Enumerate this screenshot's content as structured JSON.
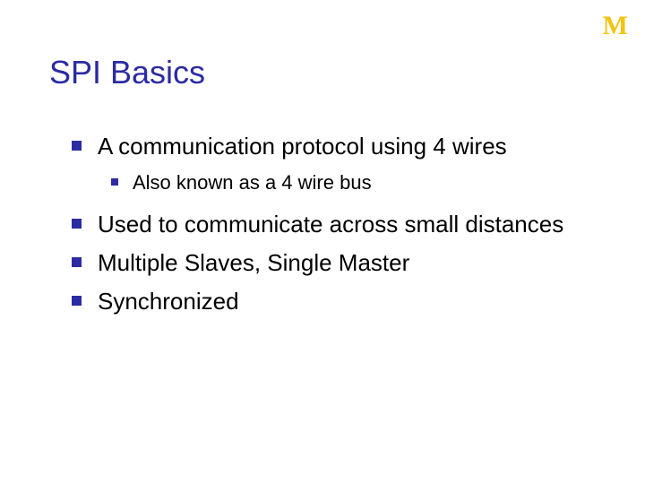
{
  "logo": {
    "text": "M",
    "color": "#f2c40f"
  },
  "title": {
    "text": "SPI Basics",
    "color": "#2b2ba3"
  },
  "bullet_color": "#2b2ba3",
  "text_color": "#000000",
  "body_fontsize_l1": 26,
  "body_fontsize_l2": 22,
  "items": [
    {
      "text": "A communication protocol using 4 wires",
      "children": [
        {
          "text": "Also known as a 4 wire bus"
        }
      ]
    },
    {
      "text": "Used to communicate across small distances"
    },
    {
      "text": "Multiple Slaves, Single Master"
    },
    {
      "text": "Synchronized"
    }
  ]
}
